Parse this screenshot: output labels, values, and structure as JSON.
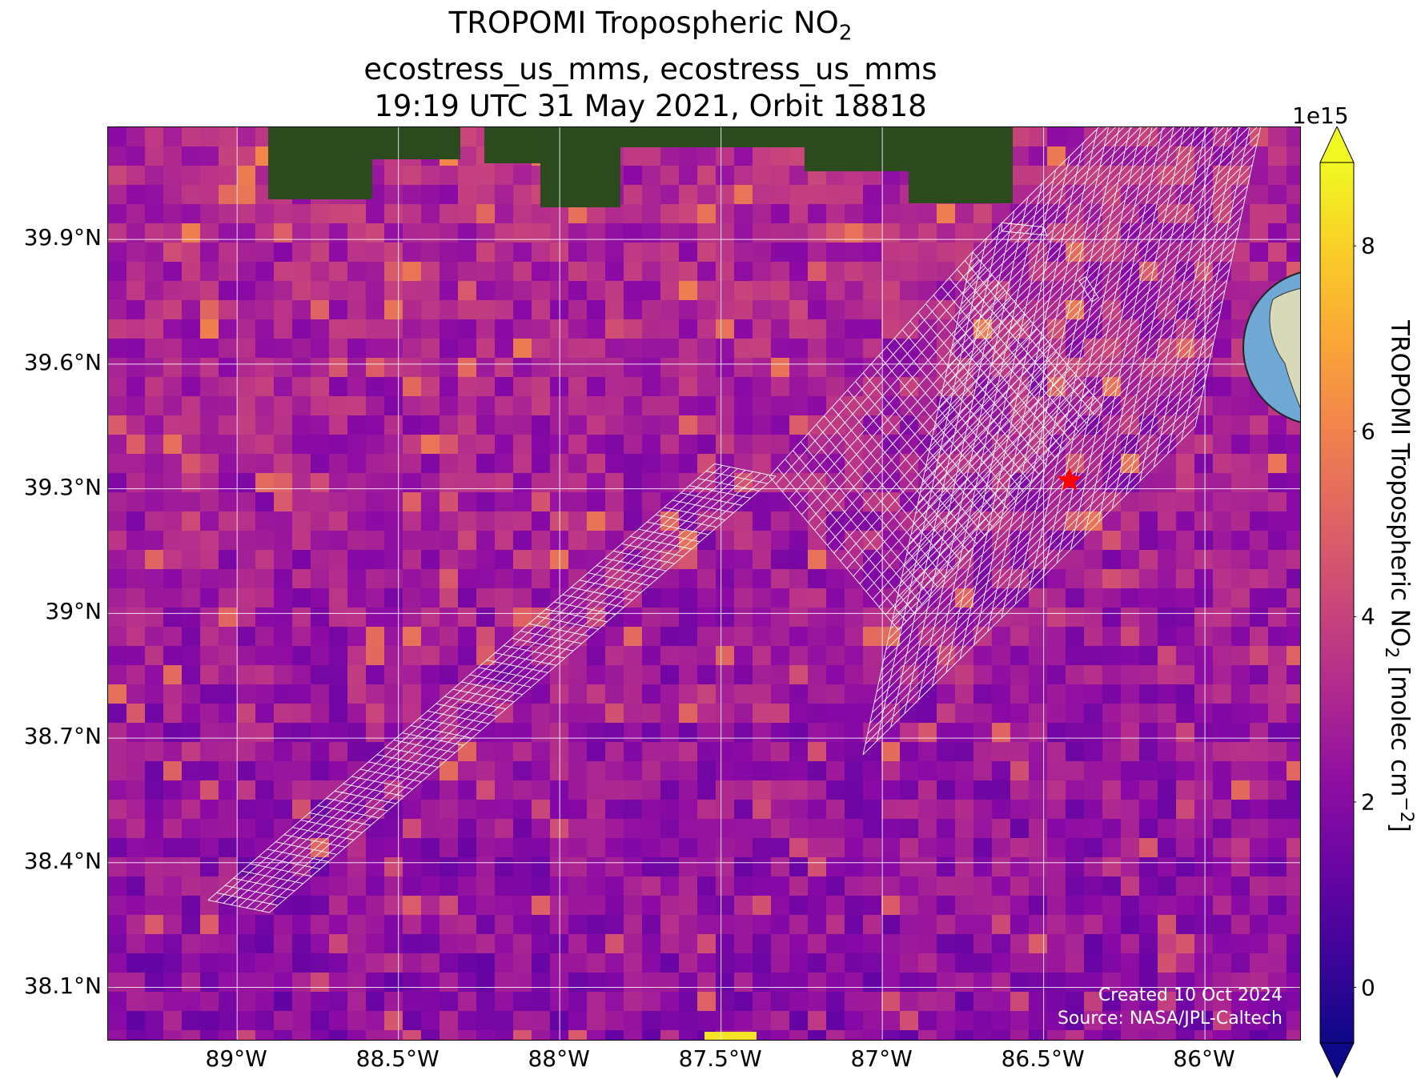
{
  "title": {
    "line1_main": "TROPOMI Tropospheric NO",
    "line1_sub": "2",
    "line2": "ecostress_us_mms, ecostress_us_mms",
    "line3": "19:19 UTC 31 May 2021, Orbit 18818"
  },
  "map": {
    "lon_range": [
      -89.4,
      -85.7
    ],
    "lat_range": [
      37.97,
      40.17
    ],
    "lat_ticks": [
      {
        "value": 39.9,
        "label": "39.9°N"
      },
      {
        "value": 39.6,
        "label": "39.6°N"
      },
      {
        "value": 39.3,
        "label": "39.3°N"
      },
      {
        "value": 39.0,
        "label": "39°N"
      },
      {
        "value": 38.7,
        "label": "38.7°N"
      },
      {
        "value": 38.4,
        "label": "38.4°N"
      },
      {
        "value": 38.1,
        "label": "38.1°N"
      }
    ],
    "lon_ticks": [
      {
        "value": -89.0,
        "label": "89°W"
      },
      {
        "value": -88.5,
        "label": "88.5°W"
      },
      {
        "value": -88.0,
        "label": "88°W"
      },
      {
        "value": -87.5,
        "label": "87.5°W"
      },
      {
        "value": -87.0,
        "label": "87°W"
      },
      {
        "value": -86.5,
        "label": "86.5°W"
      },
      {
        "value": -86.0,
        "label": "86°W"
      }
    ],
    "target_marker": {
      "lon": -86.42,
      "lat": 39.32,
      "color": "#ff0000"
    },
    "grid_color": "#ffffff",
    "footprint_color": "#ffffff",
    "background_color": "#2b4a1e"
  },
  "credit": {
    "line1": "Created 10 Oct 2024",
    "line2": "Source: NASA/JPL-Caltech"
  },
  "colorbar": {
    "exponent": "1e15",
    "range": [
      -0.6,
      8.9
    ],
    "ticks": [
      {
        "value": 0,
        "label": "0"
      },
      {
        "value": 2,
        "label": "2"
      },
      {
        "value": 4,
        "label": "4"
      },
      {
        "value": 6,
        "label": "6"
      },
      {
        "value": 8,
        "label": "8"
      }
    ],
    "colormap": "plasma",
    "label_main": "TROPOMI Tropospheric NO",
    "label_sub": "2",
    "label_unit": " [molec cm",
    "label_sup": "−2",
    "label_end": "]"
  },
  "inset": {
    "marker_color": "#ff0000",
    "ocean_color": "#6fa8d4",
    "land_color": "#d7d9b8"
  }
}
